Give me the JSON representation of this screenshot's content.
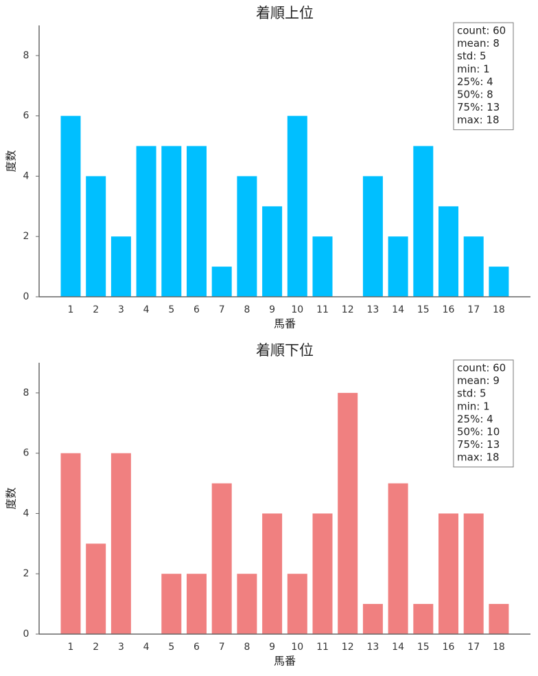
{
  "chart_data": [
    {
      "type": "bar",
      "title": "着順上位",
      "xlabel": "馬番",
      "ylabel": "度数",
      "categories": [
        "1",
        "2",
        "3",
        "4",
        "5",
        "6",
        "7",
        "8",
        "9",
        "10",
        "11",
        "12",
        "13",
        "14",
        "15",
        "16",
        "17",
        "18"
      ],
      "values": [
        6,
        4,
        2,
        5,
        5,
        5,
        1,
        4,
        3,
        6,
        2,
        0,
        4,
        2,
        5,
        3,
        2,
        1
      ],
      "color": "#00bfff",
      "ylim": [
        0,
        9
      ],
      "yticks": [
        0,
        2,
        4,
        6,
        8
      ],
      "annotations": [
        "count: 60",
        "mean: 8",
        "std: 5",
        "min: 1",
        "25%: 4",
        "50%: 8",
        "75%: 13",
        "max: 18"
      ]
    },
    {
      "type": "bar",
      "title": "着順下位",
      "xlabel": "馬番",
      "ylabel": "度数",
      "categories": [
        "1",
        "2",
        "3",
        "4",
        "5",
        "6",
        "7",
        "8",
        "9",
        "10",
        "11",
        "12",
        "13",
        "14",
        "15",
        "16",
        "17",
        "18"
      ],
      "values": [
        6,
        3,
        6,
        0,
        2,
        2,
        5,
        2,
        4,
        2,
        4,
        8,
        1,
        5,
        1,
        4,
        4,
        1
      ],
      "color": "#f08080",
      "ylim": [
        0,
        9
      ],
      "yticks": [
        0,
        2,
        4,
        6,
        8
      ],
      "annotations": [
        "count: 60",
        "mean: 9",
        "std: 5",
        "min: 1",
        "25%: 4",
        "50%: 10",
        "75%: 13",
        "max: 18"
      ]
    }
  ]
}
